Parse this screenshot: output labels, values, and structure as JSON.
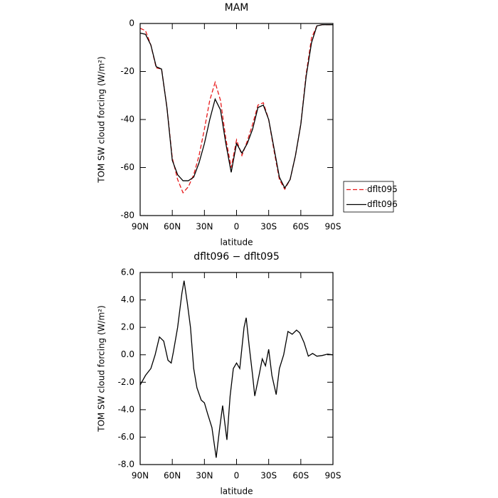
{
  "chart_data": [
    {
      "type": "line",
      "title": "MAM",
      "xlabel": "latitude",
      "ylabel": "TOM SW cloud forcing (W/m²)",
      "x": [
        90,
        85,
        80,
        75,
        70,
        65,
        60,
        55,
        50,
        45,
        40,
        35,
        30,
        25,
        20,
        15,
        10,
        5,
        0,
        -5,
        -10,
        -15,
        -20,
        -25,
        -30,
        -35,
        -40,
        -45,
        -50,
        -55,
        -60,
        -65,
        -70,
        -75,
        -80,
        -85,
        -90
      ],
      "series": [
        {
          "name": "dflt095",
          "color": "#e8191a",
          "dash": true,
          "values": [
            -2,
            -3,
            -9,
            -18.5,
            -19,
            -35,
            -56,
            -65,
            -70.5,
            -68,
            -63,
            -55,
            -44,
            -32,
            -24.5,
            -32,
            -48,
            -60,
            -48.5,
            -55,
            -49,
            -42,
            -34,
            -33,
            -40,
            -53,
            -65,
            -69,
            -65,
            -55,
            -42,
            -21,
            -6,
            -1,
            -0.5,
            -0.5,
            -0.5
          ]
        },
        {
          "name": "dflt096",
          "color": "#000000",
          "dash": false,
          "values": [
            -4,
            -4.5,
            -9,
            -18,
            -19,
            -35,
            -57,
            -63,
            -65.5,
            -65.5,
            -64,
            -58,
            -50,
            -40,
            -31.5,
            -36,
            -50,
            -62,
            -50,
            -54,
            -50,
            -44,
            -35,
            -34,
            -40,
            -52,
            -64,
            -68.5,
            -65,
            -55,
            -42,
            -22,
            -8,
            -1,
            -0.5,
            -0.5,
            -0.5
          ]
        }
      ],
      "xlim": [
        90,
        -90
      ],
      "xticks": [
        {
          "value": 90,
          "label": "90N"
        },
        {
          "value": 60,
          "label": "60N"
        },
        {
          "value": 30,
          "label": "30N"
        },
        0,
        {
          "value": -30,
          "label": "30S"
        },
        {
          "value": -60,
          "label": "60S"
        },
        {
          "value": -90,
          "label": "90S"
        }
      ],
      "ylim": [
        -80,
        0
      ],
      "yticks": [
        0,
        -20,
        -40,
        -60,
        -80
      ],
      "legend": "right"
    },
    {
      "type": "line",
      "title": "dflt096 − dflt095",
      "xlabel": "latitude",
      "ylabel": "TOM SW cloud forcing (W/m²)",
      "x": [
        90,
        85,
        80,
        76,
        72,
        68,
        64,
        61,
        59,
        55,
        51,
        49,
        46,
        43,
        40,
        37,
        33,
        30,
        27,
        23,
        19,
        16,
        13,
        9,
        6,
        3,
        0,
        -3,
        -7,
        -9,
        -12,
        -15,
        -17,
        -21,
        -24,
        -27,
        -30,
        -33,
        -37,
        -40,
        -44,
        -48,
        -52,
        -56,
        -59,
        -63,
        -67,
        -71,
        -75,
        -80,
        -85,
        -90
      ],
      "values": [
        -2.2,
        -1.5,
        -1.0,
        0,
        1.3,
        1.0,
        -0.4,
        -0.6,
        0.2,
        2,
        4.5,
        5.4,
        3.8,
        2.0,
        -1.0,
        -2.4,
        -3.3,
        -3.5,
        -4.3,
        -5.3,
        -7.5,
        -5.5,
        -3.7,
        -6.2,
        -3,
        -1,
        -0.6,
        -1.0,
        2.0,
        2.7,
        0.5,
        -1.5,
        -3.0,
        -1.5,
        -0.3,
        -0.8,
        0.4,
        -1.5,
        -2.9,
        -1.0,
        0,
        1.7,
        1.5,
        1.8,
        1.6,
        0.9,
        -0.1,
        0.1,
        -0.1,
        -0.05,
        0.05,
        0
      ],
      "color": "#000000",
      "xlim": [
        90,
        -90
      ],
      "xticks": [
        {
          "value": 90,
          "label": "90N"
        },
        {
          "value": 60,
          "label": "60N"
        },
        {
          "value": 30,
          "label": "30N"
        },
        0,
        {
          "value": -30,
          "label": "30S"
        },
        {
          "value": -60,
          "label": "60S"
        },
        {
          "value": -90,
          "label": "90S"
        }
      ],
      "ylim": [
        -8,
        6
      ],
      "yticks": [
        {
          "value": 6,
          "label": "6.0"
        },
        {
          "value": 4,
          "label": "4.0"
        },
        {
          "value": 2,
          "label": "2.0"
        },
        {
          "value": 0,
          "label": "0.0"
        },
        {
          "value": -2,
          "label": "-2.0"
        },
        {
          "value": -4,
          "label": "-4.0"
        },
        {
          "value": -6,
          "label": "-6.0"
        },
        {
          "value": -8,
          "label": "-8.0"
        }
      ]
    }
  ]
}
